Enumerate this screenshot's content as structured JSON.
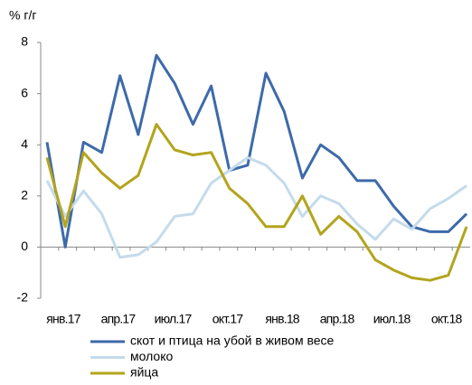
{
  "chart_data": {
    "type": "line",
    "y_label": "% г/г",
    "categories": [
      "янв.17",
      null,
      null,
      "апр.17",
      null,
      null,
      "июл.17",
      null,
      null,
      "окт.17",
      null,
      null,
      "янв.18",
      null,
      null,
      "апр.18",
      null,
      null,
      "июл.18",
      null,
      null,
      "окт.18",
      null,
      null
    ],
    "series": [
      {
        "name": "скот и птица на убой в живом весе",
        "color": "#3d6aa9",
        "values": [
          4.1,
          0,
          4.1,
          3.7,
          6.7,
          4.4,
          7.5,
          6.4,
          4.8,
          6.3,
          3.0,
          3.2,
          6.8,
          5.3,
          2.7,
          4.0,
          3.5,
          2.6,
          2.6,
          1.6,
          0.8,
          0.6,
          0.6,
          1.3
        ]
      },
      {
        "name": "молоко",
        "color": "#c4dbeb",
        "values": [
          2.6,
          1.2,
          2.2,
          1.3,
          -0.4,
          -0.3,
          0.2,
          1.2,
          1.3,
          2.5,
          3.0,
          3.5,
          3.2,
          2.5,
          1.2,
          2.0,
          1.7,
          0.9,
          0.3,
          1.1,
          0.7,
          1.5,
          1.9,
          2.4
        ]
      },
      {
        "name": "яйца",
        "color": "#b3a41d",
        "values": [
          3.5,
          0.8,
          3.7,
          2.9,
          2.3,
          2.8,
          4.8,
          3.8,
          3.6,
          3.7,
          2.3,
          1.7,
          0.8,
          0.8,
          2.0,
          0.5,
          1.2,
          0.6,
          -0.5,
          -0.9,
          -1.2,
          -1.3,
          -1.1,
          0.8
        ]
      }
    ],
    "ylim": [
      -2,
      8
    ],
    "yticks": [
      -2,
      0,
      2,
      4,
      6,
      8
    ]
  }
}
